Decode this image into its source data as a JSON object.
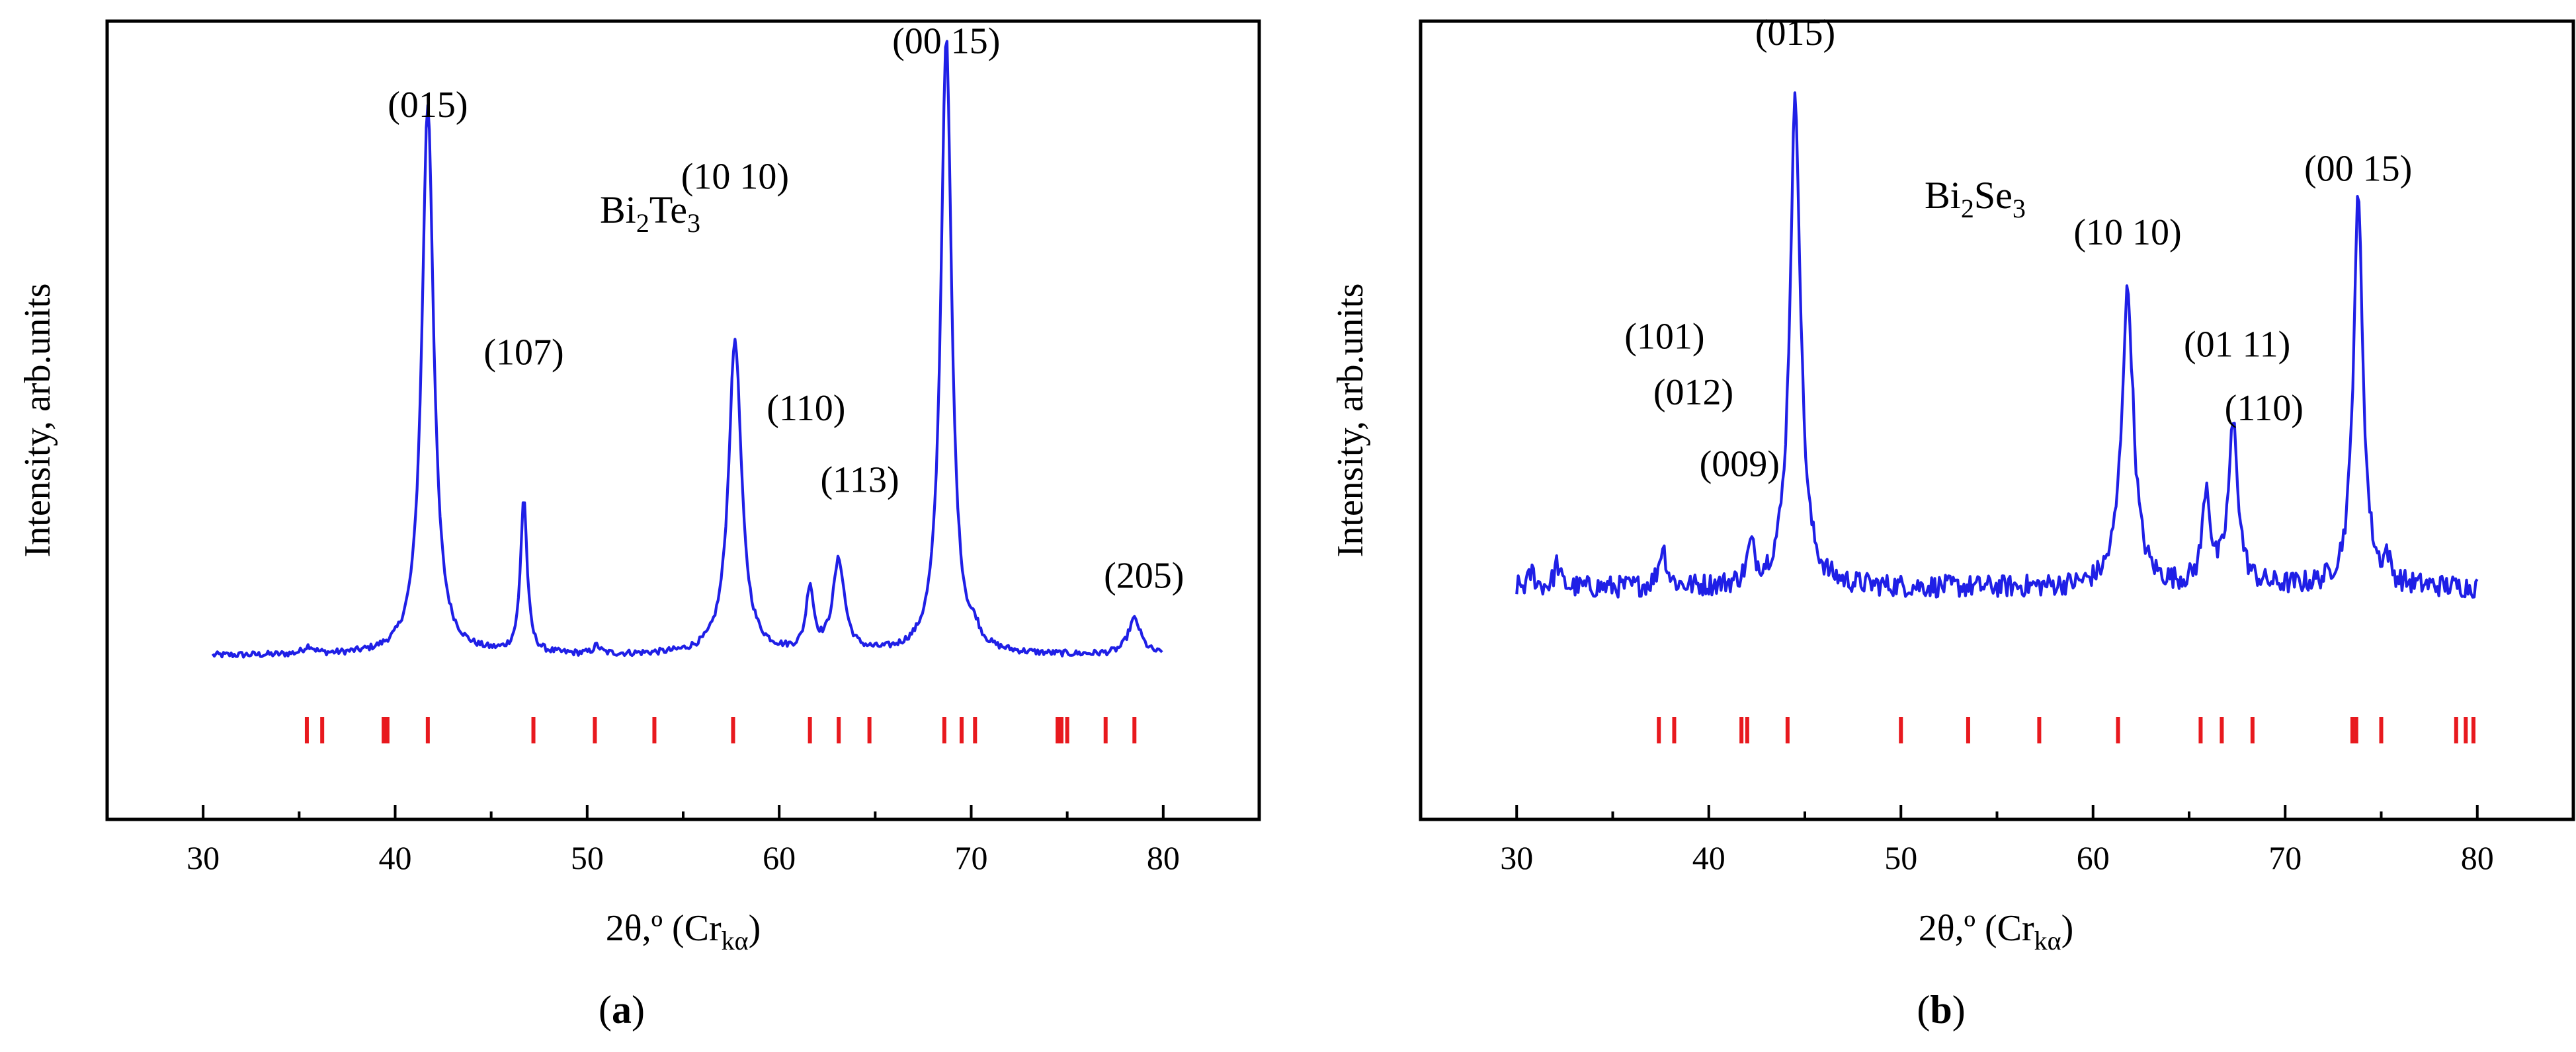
{
  "colors": {
    "trace": "#1f1fe6",
    "reference_ticks": "#e8191e",
    "axes": "#000000"
  },
  "chart_data": [
    {
      "type": "line",
      "panel_label": "a",
      "material": {
        "base": "Bi",
        "sub1": "2",
        "mid": "Te",
        "sub2": "3"
      },
      "xlabel": {
        "text": "2θ,º (Cr",
        "sub": "kα",
        "close": ")"
      },
      "ylabel": "Intensity, arb.units",
      "xlim": [
        25,
        85
      ],
      "ylim": [
        0,
        1
      ],
      "xticks": [
        30,
        40,
        50,
        60,
        70,
        80
      ],
      "yticks": [],
      "series": [
        {
          "name": "Bi2Te3 XRD pattern",
          "x_range": [
            30.5,
            80
          ],
          "baseline": 0.205,
          "noise": 0.004,
          "peaks": [
            {
              "x": 35.5,
              "h": 0.01,
              "w": 0.5
            },
            {
              "x": 41.7,
              "h": 0.69,
              "w": 0.55
            },
            {
              "x": 46.7,
              "h": 0.195,
              "w": 0.3
            },
            {
              "x": 50.5,
              "h": 0.01,
              "w": 0.3
            },
            {
              "x": 57.7,
              "h": 0.395,
              "w": 0.6
            },
            {
              "x": 61.6,
              "h": 0.08,
              "w": 0.35
            },
            {
              "x": 63.1,
              "h": 0.115,
              "w": 0.55
            },
            {
              "x": 68.7,
              "h": 0.775,
              "w": 0.5
            },
            {
              "x": 70.2,
              "h": 0.015,
              "w": 0.4
            },
            {
              "x": 78.5,
              "h": 0.045,
              "w": 0.6
            }
          ]
        }
      ],
      "reference_ticks": [
        35.4,
        36.2,
        39.4,
        39.6,
        41.7,
        47.2,
        50.4,
        53.5,
        57.6,
        61.6,
        63.1,
        64.7,
        68.6,
        69.5,
        70.2,
        74.5,
        74.7,
        75.0,
        77.0,
        78.5
      ],
      "annotations": [
        {
          "text": "(015)",
          "x": 41.7,
          "y": 0.88
        },
        {
          "text": "(107)",
          "x": 46.7,
          "y": 0.57
        },
        {
          "text": "(10 10)",
          "x": 57.7,
          "y": 0.79
        },
        {
          "text": "(110)",
          "x": 61.4,
          "y": 0.5
        },
        {
          "text": "(113)",
          "x": 64.2,
          "y": 0.41
        },
        {
          "text": "(00 15)",
          "x": 68.7,
          "y": 0.96
        },
        {
          "text": "(205)",
          "x": 79.0,
          "y": 0.29
        }
      ]
    },
    {
      "type": "line",
      "panel_label": "b",
      "material": {
        "base": "Bi",
        "sub1": "2",
        "mid": "Se",
        "sub2": "3"
      },
      "xlabel": {
        "text": "2θ,º (Cr",
        "sub": "kα",
        "close": ")"
      },
      "ylabel": "Intensity, arb.units",
      "xlim": [
        25,
        85
      ],
      "ylim": [
        0,
        1
      ],
      "xticks": [
        30,
        40,
        50,
        60,
        70,
        80
      ],
      "yticks": [],
      "series": [
        {
          "name": "Bi2Se3 XRD pattern",
          "x_range": [
            30,
            80
          ],
          "baseline": 0.29,
          "noise": 0.014,
          "peaks": [
            {
              "x": 30.8,
              "h": 0.02,
              "w": 0.25
            },
            {
              "x": 32.1,
              "h": 0.03,
              "w": 0.25
            },
            {
              "x": 37.6,
              "h": 0.05,
              "w": 0.35
            },
            {
              "x": 42.2,
              "h": 0.045,
              "w": 0.35
            },
            {
              "x": 44.5,
              "h": 0.61,
              "w": 0.5
            },
            {
              "x": 61.8,
              "h": 0.37,
              "w": 0.55
            },
            {
              "x": 65.9,
              "h": 0.12,
              "w": 0.35
            },
            {
              "x": 67.3,
              "h": 0.2,
              "w": 0.45
            },
            {
              "x": 73.8,
              "h": 0.485,
              "w": 0.45
            },
            {
              "x": 75.3,
              "h": 0.03,
              "w": 0.25
            }
          ]
        }
      ],
      "reference_ticks": [
        37.4,
        38.2,
        41.7,
        42.0,
        44.1,
        50.0,
        53.5,
        57.2,
        61.3,
        65.6,
        66.7,
        68.3,
        73.5,
        73.7,
        75.0,
        78.9,
        79.4,
        79.8
      ],
      "annotations": [
        {
          "text": "(015)",
          "x": 44.5,
          "y": 0.97
        },
        {
          "text": "(101)",
          "x": 37.7,
          "y": 0.59
        },
        {
          "text": "(012)",
          "x": 39.2,
          "y": 0.52
        },
        {
          "text": "(009)",
          "x": 41.6,
          "y": 0.43
        },
        {
          "text": "(10 10)",
          "x": 61.8,
          "y": 0.72
        },
        {
          "text": "(01 11)",
          "x": 67.5,
          "y": 0.58
        },
        {
          "text": "(110)",
          "x": 68.9,
          "y": 0.5
        },
        {
          "text": "(00 15)",
          "x": 73.8,
          "y": 0.8
        }
      ]
    }
  ]
}
